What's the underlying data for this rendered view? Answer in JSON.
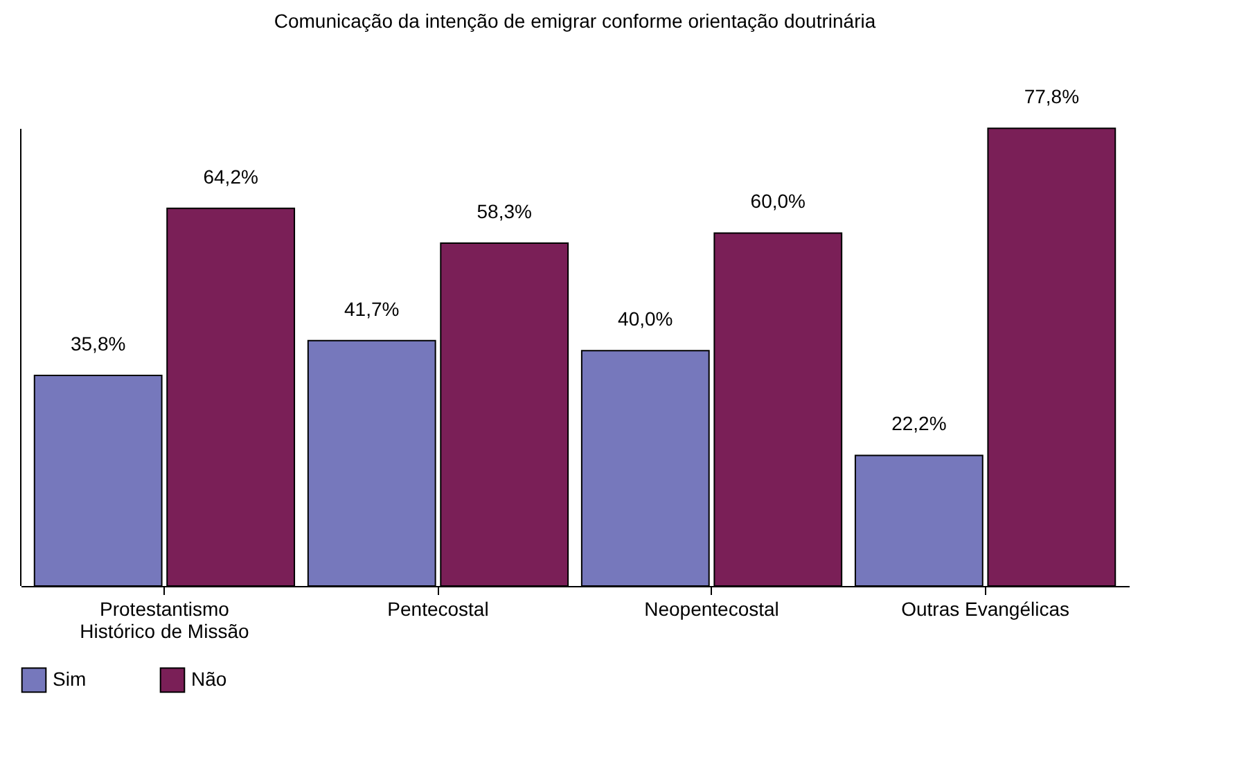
{
  "chart_data": {
    "type": "bar",
    "title": "Comunicação da intenção de emigrar conforme orientação doutrinária",
    "categories": [
      "Protestantismo Histórico de Missão",
      "Pentecostal",
      "Neopentecostal",
      "Outras Evangélicas"
    ],
    "series": [
      {
        "name": "Sim",
        "color": "#7678bc",
        "values": [
          35.8,
          41.7,
          40.0,
          22.2
        ],
        "value_labels": [
          "35,8%",
          "41,7%",
          "40,0%",
          "22,2%"
        ]
      },
      {
        "name": "Não",
        "color": "#7a1f57",
        "values": [
          64.2,
          58.3,
          60.0,
          77.8
        ],
        "value_labels": [
          "64,2%",
          "58,3%",
          "60,0%",
          "77,8%"
        ]
      }
    ],
    "legend": "bottom left"
  }
}
